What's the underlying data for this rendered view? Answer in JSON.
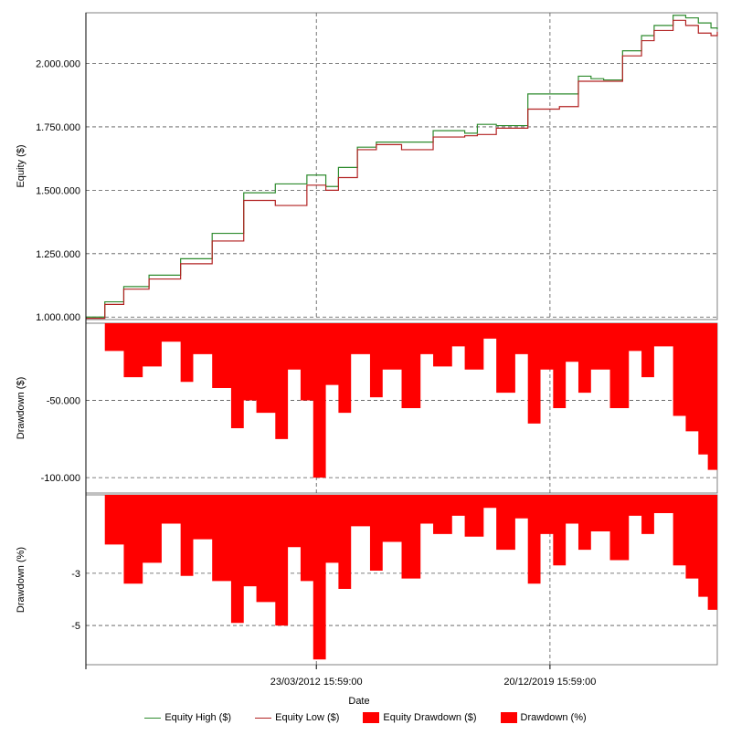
{
  "chart_data": [
    {
      "type": "line",
      "panel": "equity",
      "ylabel": "Equity ($)",
      "ylim": [
        990000,
        2200000
      ],
      "yticks": [
        1000000,
        1250000,
        1500000,
        1750000,
        2000000
      ],
      "ytick_labels": [
        "1.000.000",
        "1.250.000",
        "1.500.000",
        "1.750.000",
        "2.000.000"
      ],
      "grid": true,
      "series": [
        {
          "name": "Equity High ($)",
          "color": "#2e8b2e",
          "x": [
            0,
            0.03,
            0.06,
            0.1,
            0.15,
            0.2,
            0.25,
            0.3,
            0.35,
            0.38,
            0.4,
            0.43,
            0.46,
            0.5,
            0.55,
            0.6,
            0.62,
            0.65,
            0.7,
            0.75,
            0.78,
            0.8,
            0.82,
            0.85,
            0.88,
            0.9,
            0.93,
            0.95,
            0.97,
            0.99,
            1.0
          ],
          "values": [
            1000000,
            1060000,
            1120000,
            1165000,
            1230000,
            1330000,
            1490000,
            1525000,
            1560000,
            1515000,
            1590000,
            1670000,
            1690000,
            1690000,
            1735000,
            1725000,
            1760000,
            1755000,
            1880000,
            1880000,
            1950000,
            1940000,
            1935000,
            2050000,
            2110000,
            2150000,
            2190000,
            2180000,
            2160000,
            2140000,
            2135000
          ]
        },
        {
          "name": "Equity Low ($)",
          "color": "#b22222",
          "x": [
            0,
            0.03,
            0.06,
            0.1,
            0.15,
            0.2,
            0.25,
            0.3,
            0.35,
            0.38,
            0.4,
            0.43,
            0.46,
            0.5,
            0.55,
            0.6,
            0.62,
            0.65,
            0.7,
            0.75,
            0.78,
            0.8,
            0.82,
            0.85,
            0.88,
            0.9,
            0.93,
            0.95,
            0.97,
            0.99,
            1.0
          ],
          "values": [
            995000,
            1050000,
            1110000,
            1150000,
            1210000,
            1300000,
            1460000,
            1440000,
            1520000,
            1500000,
            1550000,
            1660000,
            1680000,
            1660000,
            1710000,
            1715000,
            1720000,
            1745000,
            1820000,
            1830000,
            1930000,
            1930000,
            1930000,
            2030000,
            2090000,
            2130000,
            2170000,
            2150000,
            2120000,
            2110000,
            2125000
          ]
        }
      ]
    },
    {
      "type": "area",
      "panel": "drawdown_dollar",
      "ylabel": "Drawdown ($)",
      "ylim": [
        -110000,
        0
      ],
      "yticks": [
        -50000,
        -100000
      ],
      "ytick_labels": [
        "-50.000",
        "-100.000"
      ],
      "grid": true,
      "series": [
        {
          "name": "Equity Drawdown ($)",
          "color": "#ff0000",
          "x": [
            0,
            0.03,
            0.06,
            0.09,
            0.12,
            0.15,
            0.17,
            0.2,
            0.23,
            0.25,
            0.27,
            0.3,
            0.32,
            0.34,
            0.36,
            0.38,
            0.4,
            0.42,
            0.45,
            0.47,
            0.5,
            0.53,
            0.55,
            0.58,
            0.6,
            0.63,
            0.65,
            0.68,
            0.7,
            0.72,
            0.74,
            0.76,
            0.78,
            0.8,
            0.83,
            0.86,
            0.88,
            0.9,
            0.93,
            0.95,
            0.97,
            0.985,
            1.0
          ],
          "values": [
            0,
            -18000,
            -35000,
            -28000,
            -12000,
            -38000,
            -20000,
            -42000,
            -68000,
            -50000,
            -58000,
            -75000,
            -30000,
            -50000,
            -100000,
            -40000,
            -58000,
            -20000,
            -48000,
            -30000,
            -55000,
            -20000,
            -28000,
            -15000,
            -30000,
            -10000,
            -45000,
            -20000,
            -65000,
            -30000,
            -55000,
            -25000,
            -45000,
            -30000,
            -55000,
            -18000,
            -35000,
            -15000,
            -60000,
            -70000,
            -85000,
            -95000,
            -50000
          ]
        }
      ]
    },
    {
      "type": "area",
      "panel": "drawdown_percent",
      "ylabel": "Drawdown (%)",
      "ylim": [
        -6.5,
        0
      ],
      "yticks": [
        -3,
        -5
      ],
      "ytick_labels": [
        "-3",
        "-5"
      ],
      "grid": true,
      "series": [
        {
          "name": "Drawdown (%)",
          "color": "#ff0000",
          "x": [
            0,
            0.03,
            0.06,
            0.09,
            0.12,
            0.15,
            0.17,
            0.2,
            0.23,
            0.25,
            0.27,
            0.3,
            0.32,
            0.34,
            0.36,
            0.38,
            0.4,
            0.42,
            0.45,
            0.47,
            0.5,
            0.53,
            0.55,
            0.58,
            0.6,
            0.63,
            0.65,
            0.68,
            0.7,
            0.72,
            0.74,
            0.76,
            0.78,
            0.8,
            0.83,
            0.86,
            0.88,
            0.9,
            0.93,
            0.95,
            0.97,
            0.985,
            1.0
          ],
          "values": [
            0,
            -1.9,
            -3.4,
            -2.6,
            -1.1,
            -3.1,
            -1.7,
            -3.3,
            -4.9,
            -3.5,
            -4.1,
            -5.0,
            -2.0,
            -3.3,
            -6.3,
            -2.6,
            -3.6,
            -1.2,
            -2.9,
            -1.8,
            -3.2,
            -1.1,
            -1.5,
            -0.8,
            -1.6,
            -0.5,
            -2.1,
            -0.9,
            -3.4,
            -1.5,
            -2.7,
            -1.1,
            -2.1,
            -1.4,
            -2.5,
            -0.8,
            -1.5,
            -0.7,
            -2.7,
            -3.2,
            -3.9,
            -4.4,
            -2.3
          ]
        }
      ]
    }
  ],
  "x_axis": {
    "label": "Date",
    "tick_labels": [
      "23/03/2012 15:59:00",
      "20/12/2019 15:59:00"
    ],
    "tick_positions": [
      0.365,
      0.735
    ]
  },
  "legend": {
    "placement": "bottom-center",
    "items": [
      {
        "label": "Equity High ($)",
        "color": "#2e8b2e",
        "kind": "line"
      },
      {
        "label": "Equity Low ($)",
        "color": "#b22222",
        "kind": "line"
      },
      {
        "label": "Equity Drawdown ($)",
        "color": "#ff0000",
        "kind": "box"
      },
      {
        "label": "Drawdown (%)",
        "color": "#ff0000",
        "kind": "box"
      }
    ]
  }
}
